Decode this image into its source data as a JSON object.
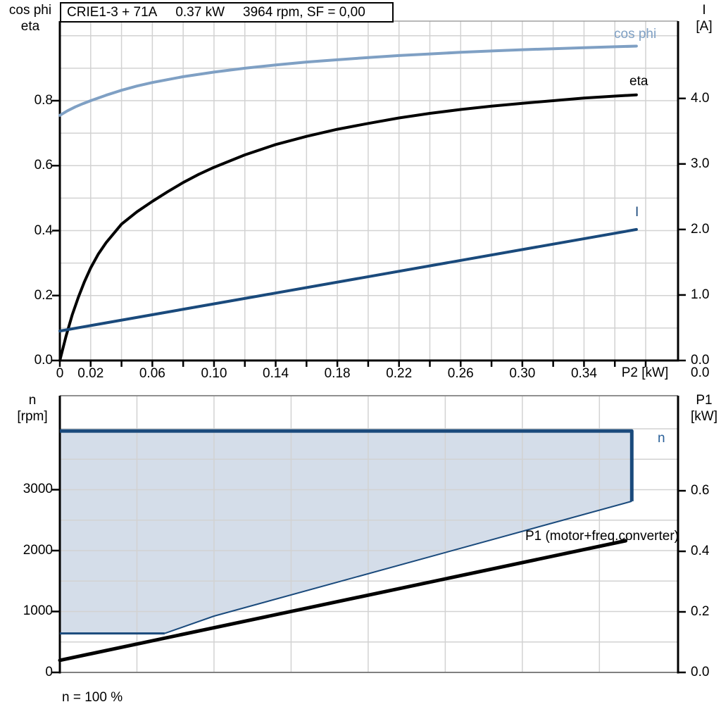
{
  "colors": {
    "black": "#000000",
    "dark_blue": "#1a4a7c",
    "mid_blue": "#2a6099",
    "light_blue": "#7fa0c4",
    "fill_blue": "#d4dde9",
    "grid": "#d2d2d2",
    "frame_gray": "#909090"
  },
  "top_chart": {
    "title_segments": [
      "CRIE1-3 + 71A",
      "0.37 kW",
      "3964 rpm, SF = 0,00"
    ],
    "axis_left_title": [
      "cos phi",
      "eta"
    ],
    "axis_right_title": [
      "I",
      "[A]"
    ],
    "x_axis_title": "P2 [kW]",
    "right_axis_bottom_label": "0.0",
    "curve_labels": {
      "cos_phi": "cos phi",
      "eta": "eta",
      "current": "I"
    }
  },
  "bottom_chart": {
    "axis_left_title": [
      "n",
      "[rpm]"
    ],
    "axis_right_title": [
      "P1",
      "[kW]"
    ],
    "envelope_label": "n",
    "p1_label": "P1 (motor+freq.converter)",
    "footnote": "n = 100 %"
  },
  "chart_data": [
    {
      "type": "line",
      "title": "CRIE1-3 + 71A  0.37 kW  3964 rpm, SF = 0,00",
      "xlabel": "P2 [kW]",
      "x_range": [
        0,
        0.401
      ],
      "x_grid": {
        "start": 0.02,
        "end": 0.385,
        "step": 0.02
      },
      "x_ticks": {
        "start": 0,
        "end": 0.385,
        "step": 0.02
      },
      "x_tick_labels": [
        {
          "v": 0,
          "t": "0"
        },
        {
          "v": 0.02,
          "t": "0.02"
        },
        {
          "v": 0.06,
          "t": "0.06"
        },
        {
          "v": 0.1,
          "t": "0.10"
        },
        {
          "v": 0.14,
          "t": "0.14"
        },
        {
          "v": 0.18,
          "t": "0.18"
        },
        {
          "v": 0.22,
          "t": "0.22"
        },
        {
          "v": 0.26,
          "t": "0.26"
        },
        {
          "v": 0.3,
          "t": "0.30"
        },
        {
          "v": 0.34,
          "t": "0.34"
        }
      ],
      "y_left": {
        "label": "cos phi / eta",
        "range": [
          0,
          1.045
        ],
        "grid": {
          "start": 0.1,
          "end": 1.0,
          "step": 0.1
        },
        "tick_labels": [
          {
            "v": 0.0,
            "t": "0.0"
          },
          {
            "v": 0.2,
            "t": "0.2"
          },
          {
            "v": 0.4,
            "t": "0.4"
          },
          {
            "v": 0.6,
            "t": "0.6"
          },
          {
            "v": 0.8,
            "t": "0.8"
          }
        ]
      },
      "y_right": {
        "label": "I [A]",
        "range": [
          0,
          5.18
        ],
        "tick_labels": [
          {
            "v": 0,
            "t": "0.0"
          },
          {
            "v": 1,
            "t": "1.0"
          },
          {
            "v": 2,
            "t": "2.0"
          },
          {
            "v": 3,
            "t": "3.0"
          },
          {
            "v": 4,
            "t": "4.0"
          }
        ]
      },
      "frame": {
        "top": "#a0a0a0",
        "top_w": 1.5,
        "bottom": "#000000",
        "bottom_w": 3
      },
      "series": [
        {
          "name": "cos phi",
          "axis": "left",
          "color": "light_blue",
          "width": 4,
          "points": [
            [
              0,
              0.755
            ],
            [
              0.005,
              0.769
            ],
            [
              0.01,
              0.781
            ],
            [
              0.015,
              0.791
            ],
            [
              0.02,
              0.8
            ],
            [
              0.03,
              0.817
            ],
            [
              0.04,
              0.832
            ],
            [
              0.05,
              0.845
            ],
            [
              0.06,
              0.856
            ],
            [
              0.08,
              0.874
            ],
            [
              0.1,
              0.888
            ],
            [
              0.12,
              0.9
            ],
            [
              0.14,
              0.91
            ],
            [
              0.16,
              0.919
            ],
            [
              0.18,
              0.926
            ],
            [
              0.2,
              0.933
            ],
            [
              0.22,
              0.939
            ],
            [
              0.24,
              0.944
            ],
            [
              0.26,
              0.949
            ],
            [
              0.28,
              0.953
            ],
            [
              0.3,
              0.957
            ],
            [
              0.32,
              0.96
            ],
            [
              0.34,
              0.963
            ],
            [
              0.36,
              0.966
            ],
            [
              0.374,
              0.968
            ]
          ]
        },
        {
          "name": "eta",
          "axis": "left",
          "color": "black",
          "width": 4,
          "points": [
            [
              0,
              0
            ],
            [
              0.004,
              0.075
            ],
            [
              0.008,
              0.14
            ],
            [
              0.012,
              0.195
            ],
            [
              0.016,
              0.243
            ],
            [
              0.02,
              0.285
            ],
            [
              0.025,
              0.328
            ],
            [
              0.03,
              0.363
            ],
            [
              0.04,
              0.42
            ],
            [
              0.05,
              0.458
            ],
            [
              0.06,
              0.49
            ],
            [
              0.07,
              0.52
            ],
            [
              0.08,
              0.548
            ],
            [
              0.09,
              0.573
            ],
            [
              0.1,
              0.595
            ],
            [
              0.12,
              0.633
            ],
            [
              0.14,
              0.665
            ],
            [
              0.16,
              0.69
            ],
            [
              0.18,
              0.712
            ],
            [
              0.2,
              0.73
            ],
            [
              0.22,
              0.747
            ],
            [
              0.24,
              0.761
            ],
            [
              0.26,
              0.773
            ],
            [
              0.28,
              0.783
            ],
            [
              0.3,
              0.792
            ],
            [
              0.32,
              0.8
            ],
            [
              0.34,
              0.808
            ],
            [
              0.36,
              0.814
            ],
            [
              0.374,
              0.818
            ]
          ]
        },
        {
          "name": "I",
          "axis": "right",
          "color": "dark_blue",
          "width": 4,
          "points": [
            [
              0,
              0.45
            ],
            [
              0.374,
              2.0
            ]
          ]
        }
      ]
    },
    {
      "type": "area+line",
      "xlabel": "P2 [kW]",
      "x_range": [
        0,
        0.401
      ],
      "x_grid": {
        "start": 0.05,
        "end": 0.36,
        "step": 0.05
      },
      "y_left": {
        "label": "n [rpm]",
        "range": [
          0,
          4543
        ],
        "grid": {
          "start": 500,
          "end": 4000,
          "step": 500
        },
        "tick_labels": [
          {
            "v": 0,
            "t": "0"
          },
          {
            "v": 1000,
            "t": "1000"
          },
          {
            "v": 2000,
            "t": "2000"
          },
          {
            "v": 3000,
            "t": "3000"
          }
        ]
      },
      "y_right": {
        "label": "P1 [kW]",
        "range": [
          0,
          0.914
        ],
        "tick_labels": [
          {
            "v": 0.0,
            "t": "0.0"
          },
          {
            "v": 0.2,
            "t": "0.2"
          },
          {
            "v": 0.4,
            "t": "0.4"
          },
          {
            "v": 0.6,
            "t": "0.6"
          }
        ]
      },
      "frame": {
        "top": "#909090",
        "top_w": 2,
        "bottom": "#808080",
        "bottom_w": 2
      },
      "envelope": {
        "name": "n",
        "fill": "fill_blue",
        "stroke": "dark_blue",
        "n_max_rpm": 3964,
        "n_min_rpm": 640,
        "points": [
          [
            0,
            3964
          ],
          [
            0.371,
            3964
          ],
          [
            0.371,
            2810
          ],
          [
            0.1,
            925
          ],
          [
            0.068,
            640
          ],
          [
            0,
            640
          ]
        ],
        "edges": [
          {
            "width": 5,
            "points": [
              [
                0,
                3964
              ],
              [
                0.371,
                3964
              ],
              [
                0.371,
                2810
              ]
            ]
          },
          {
            "width": 2,
            "points": [
              [
                0.371,
                2810
              ],
              [
                0.1,
                925
              ],
              [
                0.068,
                640
              ]
            ]
          },
          {
            "width": 3,
            "points": [
              [
                0.068,
                640
              ],
              [
                0,
                640
              ]
            ]
          }
        ]
      },
      "series": [
        {
          "name": "P1 (motor+freq.converter)",
          "axis": "right",
          "color": "black",
          "width": 5,
          "points": [
            [
              0,
              0.04
            ],
            [
              0.367,
              0.435
            ]
          ]
        }
      ]
    }
  ]
}
